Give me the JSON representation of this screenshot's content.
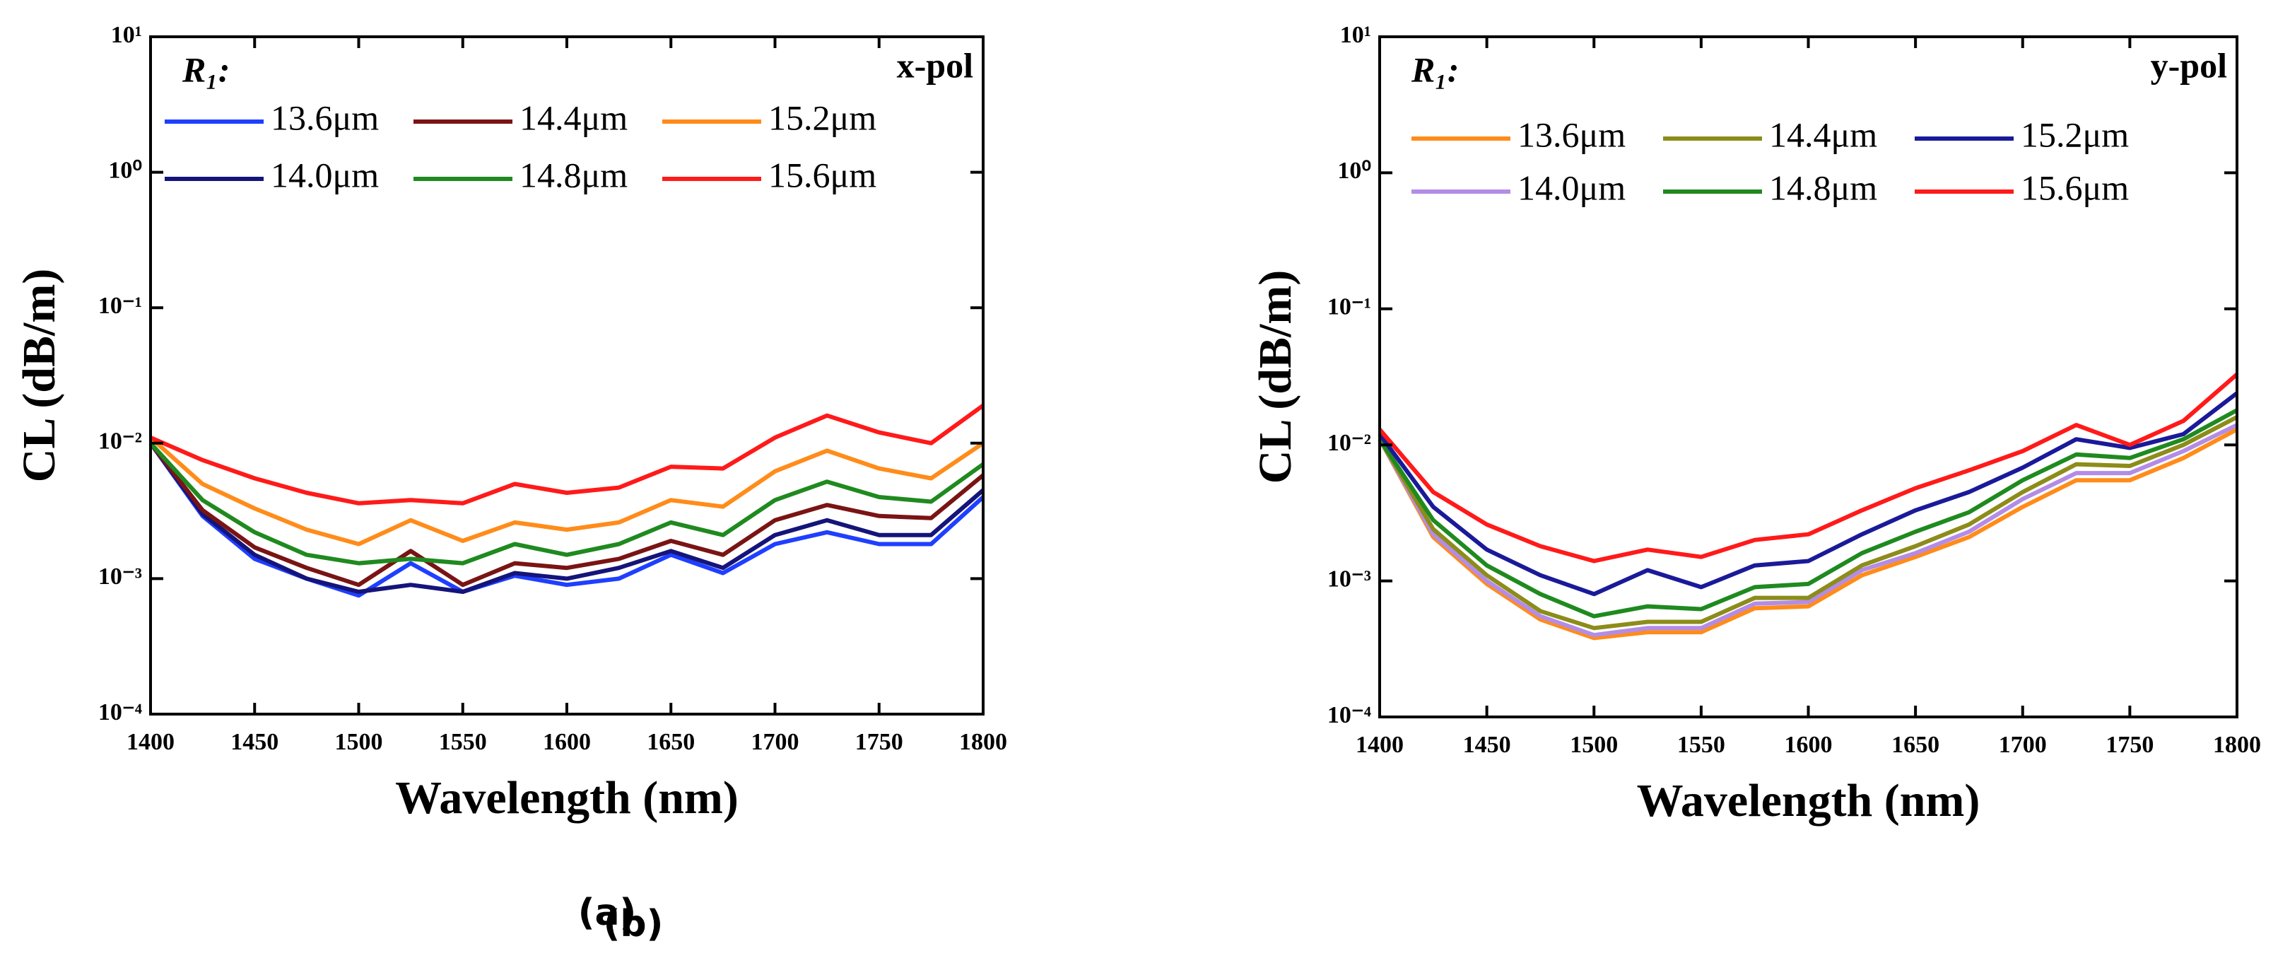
{
  "chart_data": [
    {
      "type": "line",
      "log_y": true,
      "panel_label": "(a)",
      "x_label": "Wavelength (nm)",
      "y_label": "CL (dB/m)",
      "legend_title": "R₁:",
      "annotation": "x-pol",
      "xlim": [
        1400,
        1800
      ],
      "xticks": [
        1400,
        1450,
        1500,
        1550,
        1600,
        1650,
        1700,
        1750,
        1800
      ],
      "ylim": [
        0.0001,
        10
      ],
      "yticks": [
        {
          "value": 0.0001,
          "label": "10⁻⁴"
        },
        {
          "value": 0.001,
          "label": "10⁻³"
        },
        {
          "value": 0.01,
          "label": "10⁻²"
        },
        {
          "value": 0.1,
          "label": "10⁻¹"
        },
        {
          "value": 1,
          "label": "10⁰"
        },
        {
          "value": 10,
          "label": "10¹"
        }
      ],
      "x": [
        1400,
        1425,
        1450,
        1475,
        1500,
        1525,
        1550,
        1575,
        1600,
        1625,
        1650,
        1675,
        1700,
        1725,
        1750,
        1775,
        1800
      ],
      "series": [
        {
          "name": "13.6μm",
          "color": "#1f3fff",
          "values": [
            0.01,
            0.0029,
            0.0014,
            0.001,
            0.00075,
            0.0013,
            0.0008,
            0.00105,
            0.0009,
            0.001,
            0.0015,
            0.0011,
            0.0018,
            0.0022,
            0.0018,
            0.0018,
            0.004
          ]
        },
        {
          "name": "14.0μm",
          "color": "#14147a",
          "values": [
            0.01,
            0.003,
            0.0015,
            0.001,
            0.0008,
            0.0009,
            0.0008,
            0.0011,
            0.001,
            0.0012,
            0.0016,
            0.0012,
            0.0021,
            0.0027,
            0.0021,
            0.0021,
            0.0045
          ]
        },
        {
          "name": "14.4μm",
          "color": "#7a1414",
          "values": [
            0.01,
            0.0032,
            0.0017,
            0.0012,
            0.0009,
            0.0016,
            0.0009,
            0.0013,
            0.0012,
            0.0014,
            0.0019,
            0.0015,
            0.0027,
            0.0035,
            0.0029,
            0.0028,
            0.0058
          ]
        },
        {
          "name": "14.8μm",
          "color": "#1f8a1f",
          "values": [
            0.01,
            0.0038,
            0.0022,
            0.0015,
            0.0013,
            0.0014,
            0.0013,
            0.0018,
            0.0015,
            0.0018,
            0.0026,
            0.0021,
            0.0038,
            0.0052,
            0.004,
            0.0037,
            0.007
          ]
        },
        {
          "name": "15.2μm",
          "color": "#ff8c1a",
          "values": [
            0.011,
            0.005,
            0.0033,
            0.0023,
            0.0018,
            0.0027,
            0.0019,
            0.0026,
            0.0023,
            0.0026,
            0.0038,
            0.0034,
            0.0062,
            0.0088,
            0.0065,
            0.0055,
            0.01
          ]
        },
        {
          "name": "15.6μm",
          "color": "#ff1a1a",
          "values": [
            0.011,
            0.0075,
            0.0055,
            0.0043,
            0.0036,
            0.0038,
            0.0036,
            0.005,
            0.0043,
            0.0047,
            0.0067,
            0.0065,
            0.011,
            0.016,
            0.012,
            0.01,
            0.019
          ]
        }
      ]
    },
    {
      "type": "line",
      "log_y": true,
      "panel_label": "(b)",
      "x_label": "Wavelength (nm)",
      "y_label": "CL (dB/m)",
      "legend_title": "R₁:",
      "annotation": "y-pol",
      "xlim": [
        1400,
        1800
      ],
      "xticks": [
        1400,
        1450,
        1500,
        1550,
        1600,
        1650,
        1700,
        1750,
        1800
      ],
      "ylim": [
        0.0001,
        10
      ],
      "yticks": [
        {
          "value": 0.0001,
          "label": "10⁻⁴"
        },
        {
          "value": 0.001,
          "label": "10⁻³"
        },
        {
          "value": 0.01,
          "label": "10⁻²"
        },
        {
          "value": 0.1,
          "label": "10⁻¹"
        },
        {
          "value": 1,
          "label": "10⁰"
        },
        {
          "value": 10,
          "label": "10¹"
        }
      ],
      "x": [
        1400,
        1425,
        1450,
        1475,
        1500,
        1525,
        1550,
        1575,
        1600,
        1625,
        1650,
        1675,
        1700,
        1725,
        1750,
        1775,
        1800
      ],
      "series": [
        {
          "name": "13.6μm",
          "color": "#ff8c1a",
          "values": [
            0.011,
            0.0021,
            0.00095,
            0.00052,
            0.00038,
            0.00042,
            0.00042,
            0.00063,
            0.00065,
            0.0011,
            0.0015,
            0.0021,
            0.0035,
            0.0055,
            0.0055,
            0.008,
            0.013
          ]
        },
        {
          "name": "14.0μm",
          "color": "#b38ce6",
          "values": [
            0.011,
            0.0022,
            0.001,
            0.00055,
            0.0004,
            0.00045,
            0.00045,
            0.00068,
            0.0007,
            0.0012,
            0.0016,
            0.0023,
            0.004,
            0.0062,
            0.0062,
            0.009,
            0.014
          ]
        },
        {
          "name": "14.4μm",
          "color": "#8c8c1a",
          "values": [
            0.011,
            0.0024,
            0.0011,
            0.0006,
            0.00045,
            0.0005,
            0.0005,
            0.00075,
            0.00075,
            0.0013,
            0.0018,
            0.0026,
            0.0045,
            0.0072,
            0.007,
            0.01,
            0.016
          ]
        },
        {
          "name": "14.8μm",
          "color": "#1f8a1f",
          "values": [
            0.011,
            0.0028,
            0.0013,
            0.0008,
            0.00055,
            0.00065,
            0.00062,
            0.0009,
            0.00095,
            0.0016,
            0.0023,
            0.0032,
            0.0055,
            0.0085,
            0.008,
            0.011,
            0.018
          ]
        },
        {
          "name": "15.2μm",
          "color": "#1a1a99",
          "values": [
            0.012,
            0.0035,
            0.0017,
            0.0011,
            0.0008,
            0.0012,
            0.0009,
            0.0013,
            0.0014,
            0.0022,
            0.0033,
            0.0045,
            0.0068,
            0.011,
            0.0095,
            0.012,
            0.024
          ]
        },
        {
          "name": "15.6μm",
          "color": "#ff1a1a",
          "values": [
            0.013,
            0.0045,
            0.0026,
            0.0018,
            0.0014,
            0.0017,
            0.0015,
            0.002,
            0.0022,
            0.0033,
            0.0048,
            0.0065,
            0.009,
            0.014,
            0.01,
            0.015,
            0.033
          ]
        }
      ]
    }
  ]
}
